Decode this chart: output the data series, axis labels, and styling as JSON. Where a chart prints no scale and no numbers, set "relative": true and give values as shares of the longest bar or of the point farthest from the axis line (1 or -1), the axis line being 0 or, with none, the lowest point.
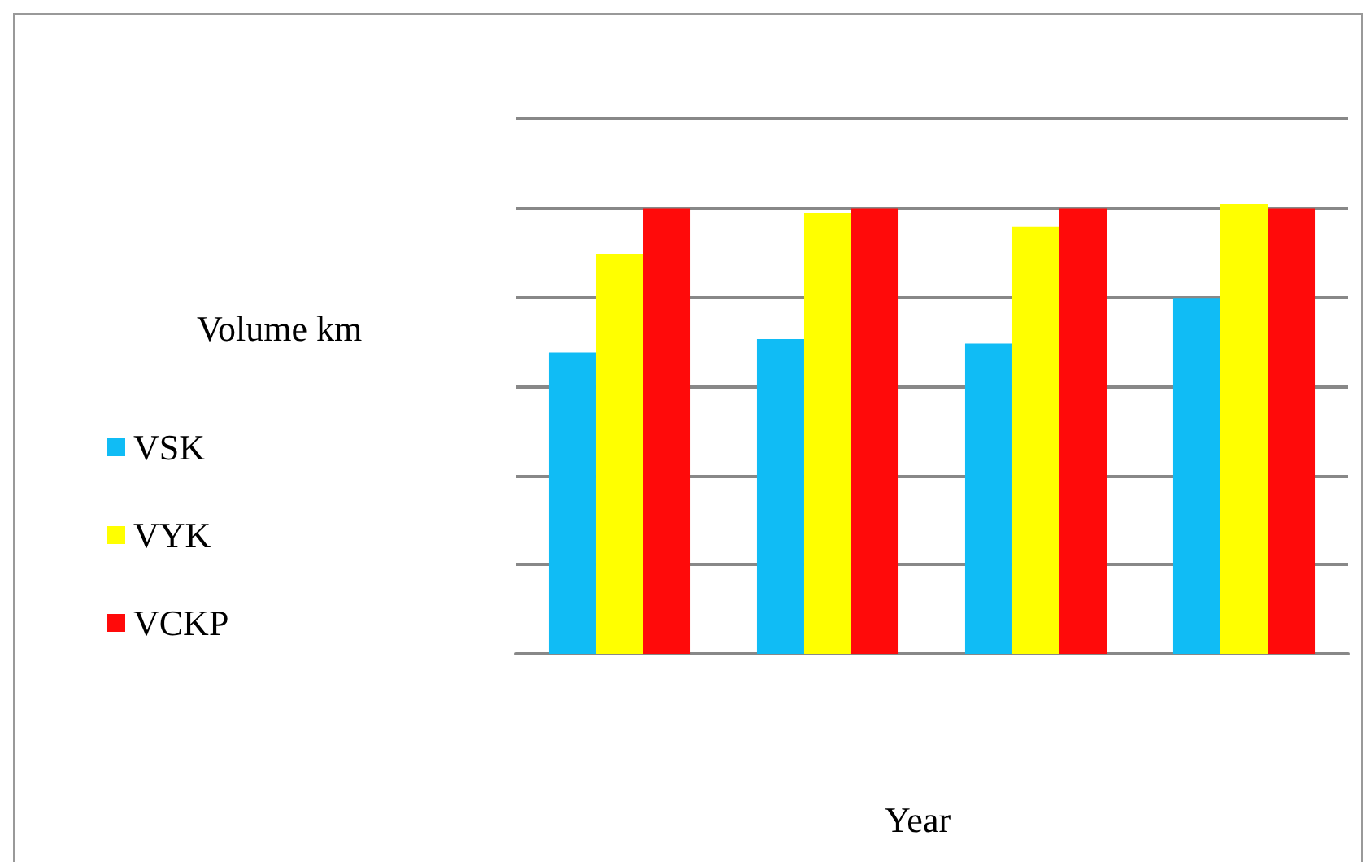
{
  "chart_data": {
    "type": "bar",
    "xlabel": "Year",
    "ylabel": "Volume km",
    "relative": true,
    "grid": "y",
    "legend": "left",
    "categories": [
      null,
      null,
      null,
      null
    ],
    "series": [
      {
        "name": "VSK",
        "color": "#10bcf5",
        "values": [
          0.67,
          0.7,
          0.69,
          0.79
        ]
      },
      {
        "name": "VYK",
        "color": "#ffff00",
        "values": [
          0.89,
          0.98,
          0.95,
          1
        ]
      },
      {
        "name": "VCKP",
        "color": "#ff0a0a",
        "values": [
          0.99,
          0.99,
          0.99,
          0.99
        ]
      }
    ]
  }
}
